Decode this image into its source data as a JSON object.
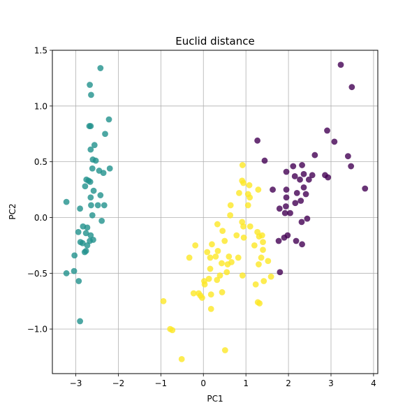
{
  "chart_data": {
    "type": "scatter",
    "title": "Euclid distance",
    "xlabel": "PC1",
    "ylabel": "PC2",
    "xlim": [
      -3.55,
      4.1
    ],
    "ylim": [
      -1.4,
      1.5
    ],
    "xticks": [
      -3,
      -2,
      -1,
      0,
      1,
      2,
      3,
      4
    ],
    "xtick_labels": [
      "−3",
      "−2",
      "−1",
      "0",
      "1",
      "2",
      "3",
      "4"
    ],
    "yticks": [
      -1.0,
      -0.5,
      0.0,
      0.5,
      1.0,
      1.5
    ],
    "ytick_labels": [
      "−1.0",
      "−0.5",
      "0.0",
      "0.5",
      "1.0",
      "1.5"
    ],
    "grid": true,
    "colors": {
      "teal": "#21918c",
      "yellow": "#fde725",
      "purple": "#440154",
      "grid": "#b0b0b0"
    },
    "series": [
      {
        "color": "teal",
        "points": [
          [
            -2.42,
            1.34
          ],
          [
            -2.67,
            1.19
          ],
          [
            -2.64,
            1.1
          ],
          [
            -2.68,
            0.82
          ],
          [
            -2.65,
            0.82
          ],
          [
            -2.22,
            0.88
          ],
          [
            -2.31,
            0.75
          ],
          [
            -2.65,
            0.61
          ],
          [
            -2.56,
            0.65
          ],
          [
            -2.6,
            0.52
          ],
          [
            -2.53,
            0.51
          ],
          [
            -2.61,
            0.44
          ],
          [
            -2.45,
            0.42
          ],
          [
            -2.35,
            0.4
          ],
          [
            -2.2,
            0.44
          ],
          [
            -2.75,
            0.34
          ],
          [
            -2.7,
            0.33
          ],
          [
            -2.66,
            0.32
          ],
          [
            -2.78,
            0.28
          ],
          [
            -2.58,
            0.24
          ],
          [
            -2.42,
            0.2
          ],
          [
            -2.65,
            0.18
          ],
          [
            -2.48,
            0.11
          ],
          [
            -2.64,
            0.11
          ],
          [
            -2.33,
            0.11
          ],
          [
            -2.9,
            0.08
          ],
          [
            -3.22,
            0.14
          ],
          [
            -2.61,
            0.02
          ],
          [
            -2.39,
            -0.03
          ],
          [
            -2.83,
            -0.08
          ],
          [
            -2.73,
            -0.09
          ],
          [
            -2.94,
            -0.13
          ],
          [
            -2.76,
            -0.14
          ],
          [
            -2.65,
            -0.16
          ],
          [
            -2.59,
            -0.2
          ],
          [
            -2.67,
            -0.21
          ],
          [
            -2.89,
            -0.22
          ],
          [
            -2.84,
            -0.23
          ],
          [
            -2.73,
            -0.25
          ],
          [
            -2.76,
            -0.3
          ],
          [
            -2.79,
            -0.31
          ],
          [
            -3.03,
            -0.34
          ],
          [
            -3.04,
            -0.48
          ],
          [
            -3.22,
            -0.5
          ],
          [
            -2.93,
            -0.57
          ],
          [
            -2.9,
            -0.93
          ]
        ]
      },
      {
        "color": "yellow",
        "points": [
          [
            0.92,
            0.47
          ],
          [
            0.91,
            0.33
          ],
          [
            0.94,
            0.31
          ],
          [
            0.84,
            0.22
          ],
          [
            1.08,
            0.29
          ],
          [
            1.29,
            0.25
          ],
          [
            1.05,
            0.21
          ],
          [
            1.09,
            0.18
          ],
          [
            0.64,
            0.11
          ],
          [
            0.63,
            0.02
          ],
          [
            0.91,
            -0.04
          ],
          [
            1.05,
            0.11
          ],
          [
            0.33,
            -0.06
          ],
          [
            0.94,
            -0.08
          ],
          [
            1.1,
            -0.08
          ],
          [
            1.27,
            -0.13
          ],
          [
            0.45,
            -0.12
          ],
          [
            0.78,
            -0.16
          ],
          [
            0.95,
            -0.18
          ],
          [
            1.31,
            -0.17
          ],
          [
            1.38,
            -0.16
          ],
          [
            1.4,
            -0.22
          ],
          [
            0.5,
            -0.21
          ],
          [
            1.2,
            -0.25
          ],
          [
            -0.19,
            -0.25
          ],
          [
            0.2,
            -0.24
          ],
          [
            0.29,
            -0.35
          ],
          [
            0.09,
            -0.31
          ],
          [
            0.16,
            -0.36
          ],
          [
            0.34,
            -0.3
          ],
          [
            0.6,
            -0.35
          ],
          [
            0.82,
            -0.36
          ],
          [
            1.4,
            -0.29
          ],
          [
            1.36,
            -0.36
          ],
          [
            1.52,
            -0.39
          ],
          [
            -0.33,
            -0.36
          ],
          [
            0.43,
            -0.41
          ],
          [
            0.57,
            -0.42
          ],
          [
            0.66,
            -0.4
          ],
          [
            1.3,
            -0.42
          ],
          [
            0.16,
            -0.46
          ],
          [
            0.39,
            -0.52
          ],
          [
            0.55,
            -0.49
          ],
          [
            0.32,
            -0.56
          ],
          [
            0.13,
            -0.55
          ],
          [
            1.42,
            -0.57
          ],
          [
            1.59,
            -0.53
          ],
          [
            0.92,
            -0.52
          ],
          [
            0.02,
            -0.57
          ],
          [
            1.23,
            -0.6
          ],
          [
            0.03,
            -0.6
          ],
          [
            -0.23,
            -0.68
          ],
          [
            -0.11,
            -0.68
          ],
          [
            -0.07,
            -0.7
          ],
          [
            -0.03,
            -0.72
          ],
          [
            0.44,
            -0.67
          ],
          [
            0.18,
            -0.82
          ],
          [
            -0.94,
            -0.75
          ],
          [
            0.18,
            -0.69
          ],
          [
            1.28,
            -0.76
          ],
          [
            1.32,
            -0.77
          ],
          [
            -0.78,
            -1.0
          ],
          [
            -0.73,
            -1.01
          ],
          [
            -0.51,
            -1.27
          ],
          [
            0.51,
            -1.19
          ]
        ]
      },
      {
        "color": "purple",
        "points": [
          [
            3.23,
            1.37
          ],
          [
            3.49,
            1.17
          ],
          [
            2.91,
            0.78
          ],
          [
            3.08,
            0.68
          ],
          [
            3.4,
            0.55
          ],
          [
            3.47,
            0.46
          ],
          [
            1.27,
            0.69
          ],
          [
            1.44,
            0.51
          ],
          [
            2.62,
            0.56
          ],
          [
            2.32,
            0.47
          ],
          [
            2.11,
            0.46
          ],
          [
            1.95,
            0.41
          ],
          [
            2.15,
            0.37
          ],
          [
            2.27,
            0.34
          ],
          [
            2.36,
            0.39
          ],
          [
            2.48,
            0.34
          ],
          [
            2.56,
            0.38
          ],
          [
            2.86,
            0.38
          ],
          [
            2.93,
            0.36
          ],
          [
            3.8,
            0.26
          ],
          [
            1.63,
            0.25
          ],
          [
            1.95,
            0.25
          ],
          [
            2.2,
            0.22
          ],
          [
            2.36,
            0.27
          ],
          [
            2.41,
            0.21
          ],
          [
            2.16,
            0.13
          ],
          [
            2.29,
            0.15
          ],
          [
            1.95,
            0.18
          ],
          [
            1.94,
            0.1
          ],
          [
            1.79,
            0.08
          ],
          [
            1.92,
            0.04
          ],
          [
            2.04,
            0.04
          ],
          [
            2.31,
            -0.04
          ],
          [
            2.44,
            -0.01
          ],
          [
            1.98,
            -0.16
          ],
          [
            1.9,
            -0.18
          ],
          [
            1.77,
            -0.21
          ],
          [
            2.18,
            -0.21
          ],
          [
            2.32,
            -0.24
          ],
          [
            1.8,
            -0.49
          ]
        ]
      }
    ]
  }
}
